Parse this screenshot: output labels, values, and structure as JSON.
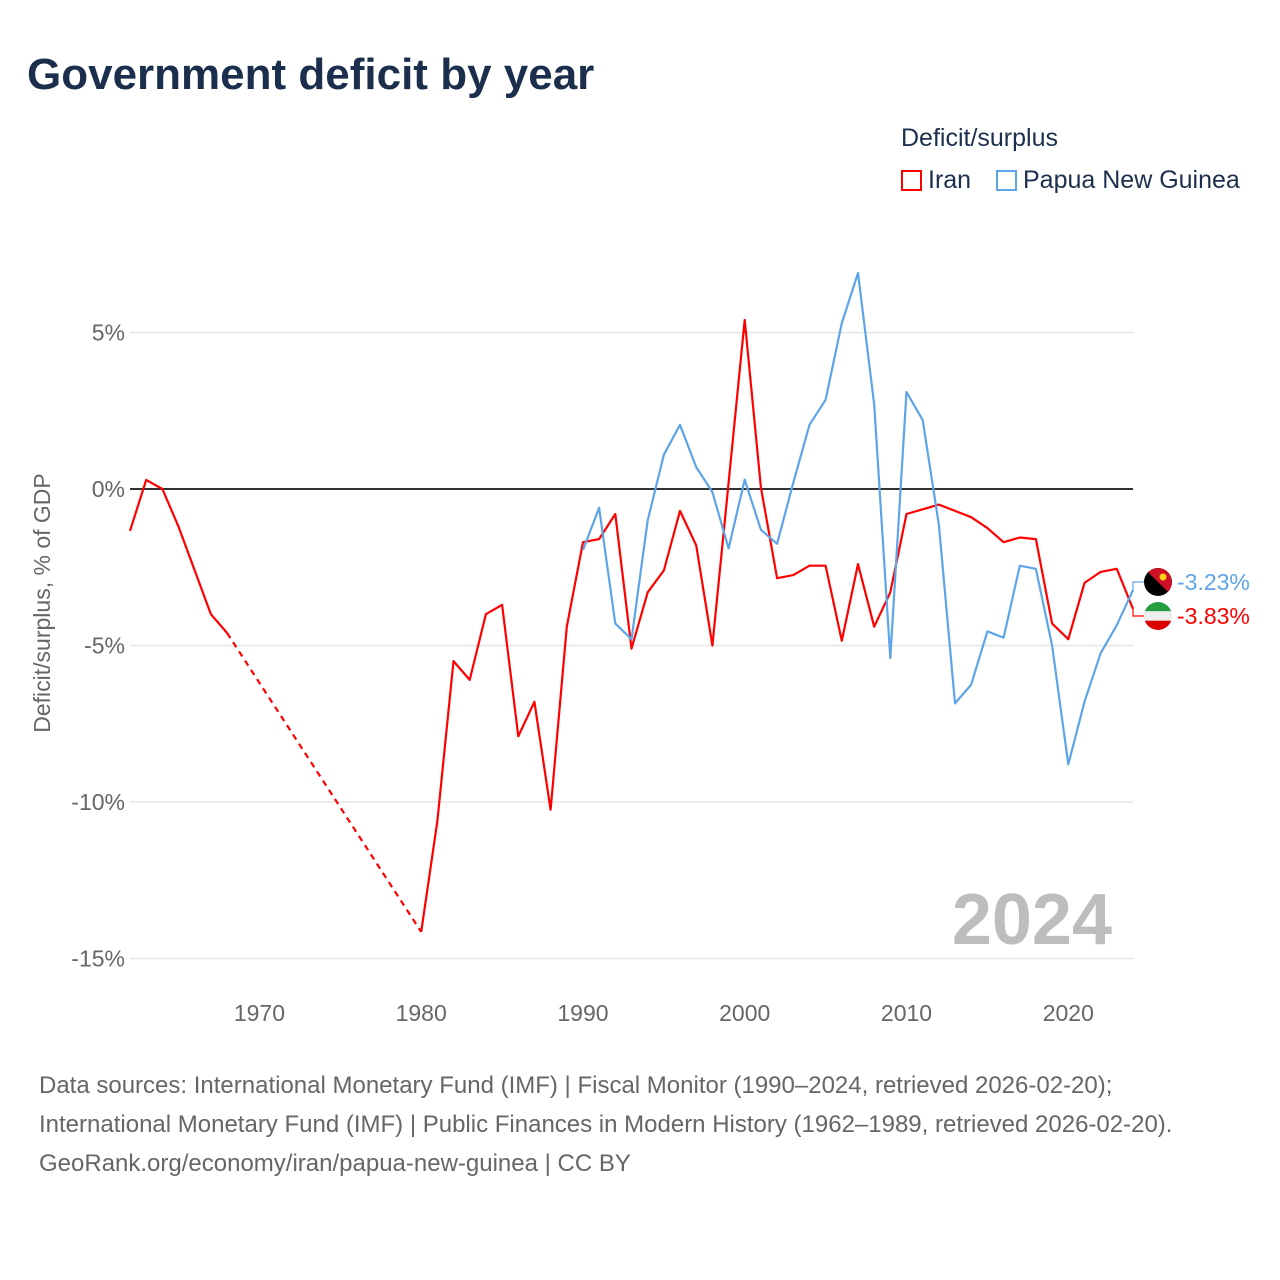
{
  "title": "Government deficit by year",
  "legend": {
    "title": "Deficit/surplus",
    "items": [
      {
        "name": "Iran",
        "color": "#ff0000"
      },
      {
        "name": "Papua New Guinea",
        "color": "#5da5e8"
      }
    ]
  },
  "year_watermark": "2024",
  "end_labels": {
    "png": "-3.23%",
    "iran": "-3.83%"
  },
  "footer": {
    "sources": "Data sources: International Monetary Fund (IMF) | Fiscal Monitor (1990–2024, retrieved 2026-02-20); International Monetary Fund (IMF) | Public Finances in Modern History (1962–1989, retrieved 2026-02-20).",
    "credit": "GeoRank.org/economy/iran/papua-new-guinea | CC BY"
  },
  "chart_data": {
    "type": "line",
    "title": "Government deficit by year",
    "xlabel": "",
    "ylabel": "Deficit/surplus, % of GDP",
    "xlim": [
      1962,
      2024
    ],
    "ylim": [
      -16,
      8
    ],
    "x_ticks": [
      1970,
      1980,
      1990,
      2000,
      2010,
      2020
    ],
    "x_tick_labels": [
      "1970",
      "1980",
      "1990",
      "2000",
      "2010",
      "2020"
    ],
    "y_ticks": [
      5,
      0,
      -5,
      -10,
      -15
    ],
    "y_tick_labels": [
      "5%",
      "0%",
      "-5%",
      "-10%",
      "-15%"
    ],
    "grid": true,
    "legend_position": "top-right",
    "series": [
      {
        "name": "Iran",
        "color": "#ff0000",
        "x": [
          1962,
          1963,
          1964,
          1965,
          1966,
          1967,
          1968,
          1980,
          1981,
          1982,
          1983,
          1984,
          1985,
          1986,
          1987,
          1988,
          1989,
          1990,
          1991,
          1992,
          1993,
          1994,
          1995,
          1996,
          1997,
          1998,
          1999,
          2000,
          2001,
          2002,
          2003,
          2004,
          2005,
          2006,
          2007,
          2008,
          2009,
          2010,
          2011,
          2012,
          2013,
          2014,
          2015,
          2016,
          2017,
          2018,
          2019,
          2020,
          2021,
          2022,
          2023,
          2024
        ],
        "values": [
          -1.34,
          0.29,
          0.0,
          -1.2,
          -2.6,
          -4.0,
          -4.6,
          -14.15,
          -10.6,
          -5.5,
          -6.1,
          -4.0,
          -3.7,
          -7.9,
          -6.8,
          -10.25,
          -4.4,
          -1.7,
          -1.6,
          -0.8,
          -5.1,
          -3.3,
          -2.6,
          -0.7,
          -1.8,
          -5.0,
          0.2,
          5.4,
          0.05,
          -2.85,
          -2.75,
          -2.45,
          -2.45,
          -4.85,
          -2.4,
          -4.4,
          -3.3,
          -0.8,
          -0.65,
          -0.5,
          -0.7,
          -0.9,
          -1.25,
          -1.7,
          -1.55,
          -1.6,
          -4.3,
          -4.8,
          -3.0,
          -2.65,
          -2.55,
          -3.83
        ],
        "gap_years": [
          1968,
          1980
        ]
      },
      {
        "name": "Papua New Guinea",
        "color": "#5da5e8",
        "x": [
          1990,
          1991,
          1992,
          1993,
          1994,
          1995,
          1996,
          1997,
          1998,
          1999,
          2000,
          2001,
          2002,
          2003,
          2004,
          2005,
          2006,
          2007,
          2008,
          2009,
          2010,
          2011,
          2012,
          2013,
          2014,
          2015,
          2016,
          2017,
          2018,
          2019,
          2020,
          2021,
          2022,
          2023,
          2024
        ],
        "values": [
          -1.95,
          -0.6,
          -4.3,
          -4.8,
          -1.0,
          1.1,
          2.05,
          0.7,
          -0.1,
          -1.9,
          0.3,
          -1.3,
          -1.75,
          0.2,
          2.05,
          2.85,
          5.3,
          6.9,
          2.7,
          -5.4,
          3.1,
          2.2,
          -1.15,
          -6.85,
          -6.25,
          -4.55,
          -4.75,
          -2.45,
          -2.55,
          -5.0,
          -8.8,
          -6.8,
          -5.25,
          -4.35,
          -3.23
        ]
      }
    ]
  }
}
